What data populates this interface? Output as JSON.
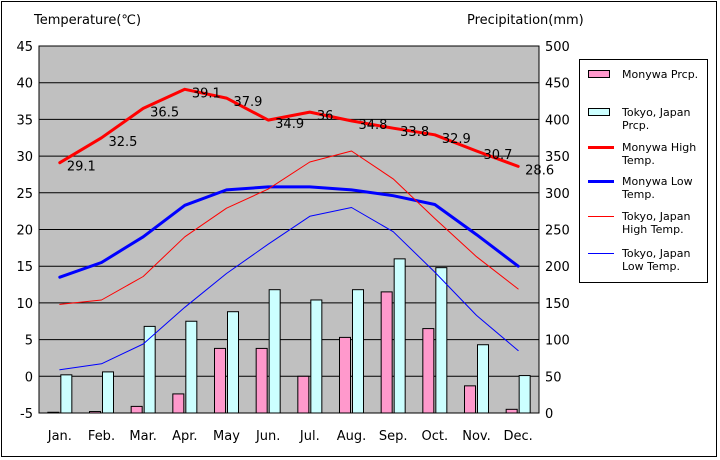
{
  "chart_data": {
    "type": "bar",
    "title": "",
    "xlabel": "",
    "ylabel": "Temperature(℃)",
    "y2label": "Precipitation(mm)",
    "categories": [
      "Jan.",
      "Feb.",
      "Mar.",
      "Apr.",
      "May",
      "Jun.",
      "Jul.",
      "Aug.",
      "Sep.",
      "Oct.",
      "Nov.",
      "Dec."
    ],
    "ylim": [
      -5,
      45
    ],
    "y_ticks": [
      "45",
      "40",
      "35",
      "30",
      "25",
      "20",
      "15",
      "10",
      "5",
      "0",
      "-5"
    ],
    "y2lim": [
      0,
      500
    ],
    "y2_ticks": [
      "500",
      "450",
      "400",
      "350",
      "300",
      "250",
      "200",
      "150",
      "100",
      "50",
      "0"
    ],
    "grid": true,
    "legend_position": "right",
    "bar_series": [
      {
        "name": "Monywa Prcp.",
        "color": "#ff99cc",
        "axis": "right",
        "values": [
          1,
          2,
          9,
          26,
          88,
          88,
          50,
          103,
          165,
          115,
          37,
          5
        ]
      },
      {
        "name": "Tokyo, Japan Prcp.",
        "color": "#ccffff",
        "axis": "right",
        "values": [
          52,
          56,
          118,
          125,
          138,
          168,
          154,
          168,
          210,
          198,
          93,
          51
        ]
      }
    ],
    "line_series": [
      {
        "name": "Monywa High Temp.",
        "color": "#ff0000",
        "width": 3,
        "values": [
          29.1,
          32.5,
          36.5,
          39.1,
          37.9,
          34.9,
          36,
          34.8,
          33.8,
          32.9,
          30.7,
          28.6
        ],
        "labels": [
          "29.1",
          "32.5",
          "36.5",
          "39.1",
          "37.9",
          "34.9",
          "36",
          "34.8",
          "33.8",
          "32.9",
          "30.7",
          "28.6"
        ]
      },
      {
        "name": "Monywa Low Temp.",
        "color": "#0000ff",
        "width": 3,
        "values": [
          13.5,
          15.5,
          19,
          23.3,
          25.4,
          25.8,
          25.8,
          25.4,
          24.6,
          23.4,
          19.3,
          15
        ]
      },
      {
        "name": "Tokyo, Japan High Temp.",
        "color": "#ff0000",
        "width": 1,
        "values": [
          9.8,
          10.4,
          13.6,
          19,
          22.9,
          25.5,
          29.2,
          30.7,
          26.9,
          21.5,
          16.3,
          11.9
        ]
      },
      {
        "name": "Tokyo, Japan Low Temp.",
        "color": "#0000ff",
        "width": 1,
        "values": [
          0.9,
          1.7,
          4.4,
          9.4,
          14,
          18,
          21.8,
          23,
          19.7,
          14.2,
          8.3,
          3.5
        ]
      }
    ],
    "legend": [
      {
        "key": "mon_prcp",
        "label": "Monywa Prcp."
      },
      {
        "key": "tok_prcp",
        "label": "Tokyo, Japan Prcp."
      },
      {
        "key": "mon_high",
        "label": "Monywa High Temp."
      },
      {
        "key": "mon_low",
        "label": "Monywa Low Temp."
      },
      {
        "key": "tok_high",
        "label": "Tokyo, Japan High Temp."
      },
      {
        "key": "tok_low",
        "label": "Tokyo, Japan Low Temp."
      }
    ],
    "colors": {
      "plot_background": "#c0c0c0",
      "grid": "#000000"
    }
  }
}
